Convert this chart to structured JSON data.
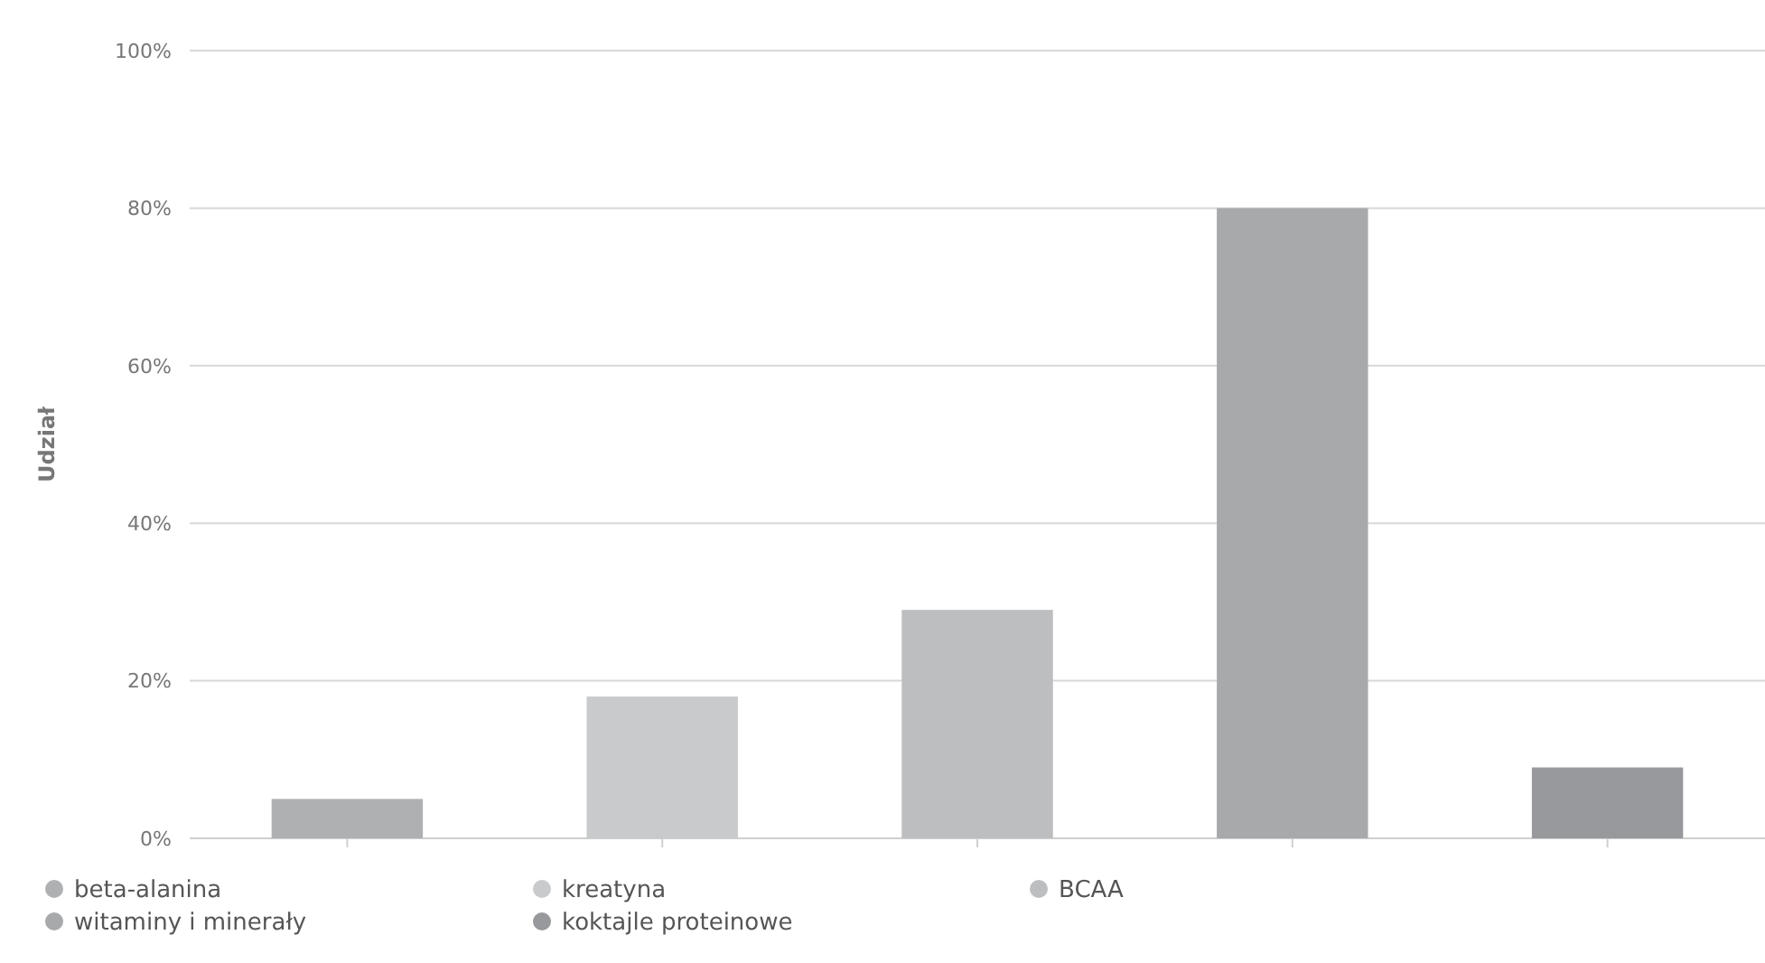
{
  "chart_data": {
    "type": "bar",
    "ylabel": "Udział",
    "categories": [
      null,
      null,
      null,
      null,
      null
    ],
    "series": [
      {
        "name": "beta-alanina",
        "color": "#afb0b2",
        "values": [
          5,
          null,
          null,
          null,
          null
        ]
      },
      {
        "name": "kreatyna",
        "color": "#c9cacc",
        "values": [
          null,
          18,
          null,
          null,
          null
        ]
      },
      {
        "name": "BCAA",
        "color": "#bdbec0",
        "values": [
          null,
          null,
          29,
          null,
          null
        ]
      },
      {
        "name": "witaminy i minerały",
        "color": "#a8a9ab",
        "values": [
          null,
          null,
          null,
          80,
          null
        ]
      },
      {
        "name": "koktajle proteinowe",
        "color": "#98999c",
        "values": [
          null,
          null,
          null,
          null,
          9
        ]
      }
    ],
    "ylim": [
      0,
      100
    ],
    "yticks": [
      {
        "value": 0,
        "label": "0%"
      },
      {
        "value": 20,
        "label": "20%"
      },
      {
        "value": 40,
        "label": "40%"
      },
      {
        "value": 60,
        "label": "60%"
      },
      {
        "value": 80,
        "label": "80%"
      },
      {
        "value": 100,
        "label": "100%"
      }
    ],
    "grid": "y",
    "legend": "bottom left"
  }
}
